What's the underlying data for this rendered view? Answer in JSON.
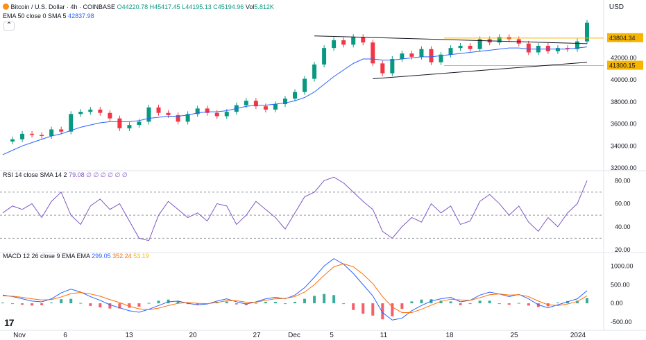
{
  "header": {
    "symbol": "Bitcoin / U.S. Dollar · 4h · COINBASE",
    "open": "O44220.78",
    "high": "H45417.45",
    "low": "L44195.13",
    "close": "C45194.96",
    "volume_label": "Vol",
    "volume": "5.812K",
    "ema_label": "EMA 50 close 0 SMA 5",
    "ema_value": "42837.98",
    "currency": "USD"
  },
  "rsi_header": {
    "label": "RSI 14 close SMA 14 2",
    "value": "79.08",
    "extra": "∅ ∅ ∅ ∅ ∅ ∅"
  },
  "macd_header": {
    "label": "MACD 12 26 close 9 EMA EMA",
    "v1": "299.05",
    "v2": "352.24",
    "v3": "53.19"
  },
  "colors": {
    "up": "#089981",
    "down": "#f23645",
    "ema": "#2962ff",
    "rsi": "#7e57c2",
    "macd": "#2962ff",
    "signal": "#ff6d00",
    "level": "#f7b500"
  },
  "chart_data": [
    {
      "type": "line",
      "name": "price",
      "ylim": [
        32000,
        46000
      ],
      "y_ticks": [
        "32000.00",
        "34000.00",
        "36000.00",
        "38000.00",
        "40000.00",
        "42000.00"
      ],
      "x_ticks": [
        "Nov",
        "6",
        "13",
        "20",
        "27",
        "Dec",
        "5",
        "11",
        "18",
        "25",
        "2024"
      ],
      "price_points": [
        34400,
        34600,
        35100,
        35000,
        34900,
        35500,
        35300,
        36900,
        37100,
        37300,
        37000,
        36500,
        35600,
        35900,
        36200,
        37500,
        37000,
        36800,
        36200,
        36900,
        37400,
        37000,
        36700,
        37100,
        37700,
        38100,
        37600,
        37300,
        37800,
        38300,
        38900,
        40100,
        41400,
        42900,
        43600,
        43200,
        43900,
        43400,
        41500,
        40600,
        41900,
        42400,
        42100,
        42800,
        41600,
        42300,
        42900,
        43100,
        42800,
        43700,
        43400,
        43900,
        43700,
        43300,
        42500,
        43100,
        42600,
        42900,
        42800,
        43500,
        45200
      ],
      "ema_points": [
        33200,
        33600,
        34000,
        34300,
        34600,
        34900,
        35100,
        35400,
        35700,
        35900,
        36100,
        36200,
        36200,
        36200,
        36300,
        36500,
        36600,
        36700,
        36700,
        36800,
        37000,
        37100,
        37100,
        37200,
        37400,
        37600,
        37700,
        37700,
        37800,
        37900,
        38100,
        38400,
        38900,
        39600,
        40300,
        40900,
        41500,
        41900,
        41900,
        41800,
        41800,
        41900,
        42000,
        42100,
        42100,
        42200,
        42300,
        42400,
        42500,
        42600,
        42700,
        42800,
        42900,
        42900,
        42800,
        42800,
        42800,
        42800,
        42800,
        42900,
        43000
      ],
      "levels": [
        {
          "label": "43804.34",
          "value": 43804.34
        },
        {
          "label": "41300.15",
          "value": 41300.15
        }
      ]
    },
    {
      "type": "line",
      "name": "RSI",
      "ylim": [
        20,
        85
      ],
      "y_ticks": [
        "20.00",
        "40.00",
        "60.00",
        "80.00"
      ],
      "values": [
        52,
        58,
        55,
        60,
        48,
        62,
        70,
        50,
        42,
        58,
        64,
        55,
        60,
        45,
        30,
        28,
        50,
        62,
        55,
        48,
        52,
        45,
        60,
        58,
        42,
        50,
        62,
        55,
        48,
        38,
        52,
        66,
        70,
        80,
        83,
        78,
        70,
        62,
        55,
        36,
        30,
        40,
        48,
        44,
        60,
        52,
        58,
        42,
        45,
        62,
        68,
        60,
        50,
        58,
        44,
        36,
        48,
        40,
        52,
        60,
        80
      ]
    },
    {
      "type": "bar",
      "name": "MACD",
      "ylim": [
        -650,
        1250
      ],
      "y_ticks": [
        "-500.00",
        "0.00",
        "500.00",
        "1000.00"
      ],
      "macd": [
        220,
        180,
        120,
        60,
        40,
        120,
        280,
        380,
        300,
        180,
        80,
        -40,
        -120,
        -200,
        -240,
        -160,
        -60,
        40,
        60,
        0,
        -40,
        -20,
        60,
        120,
        40,
        -20,
        40,
        120,
        160,
        120,
        220,
        420,
        700,
        1000,
        1200,
        1050,
        800,
        500,
        200,
        -250,
        -450,
        -400,
        -200,
        -60,
        60,
        120,
        160,
        40,
        80,
        220,
        300,
        250,
        180,
        240,
        120,
        -40,
        -120,
        -40,
        40,
        120,
        340
      ],
      "signal": [
        200,
        190,
        160,
        120,
        90,
        100,
        170,
        260,
        290,
        250,
        190,
        100,
        20,
        -80,
        -150,
        -170,
        -130,
        -60,
        0,
        20,
        0,
        -10,
        20,
        70,
        70,
        30,
        30,
        80,
        120,
        130,
        180,
        300,
        500,
        750,
        980,
        1060,
        980,
        780,
        530,
        180,
        -100,
        -250,
        -250,
        -160,
        -50,
        50,
        110,
        90,
        80,
        150,
        230,
        250,
        220,
        230,
        180,
        60,
        -40,
        -60,
        -20,
        50,
        200
      ]
    }
  ]
}
